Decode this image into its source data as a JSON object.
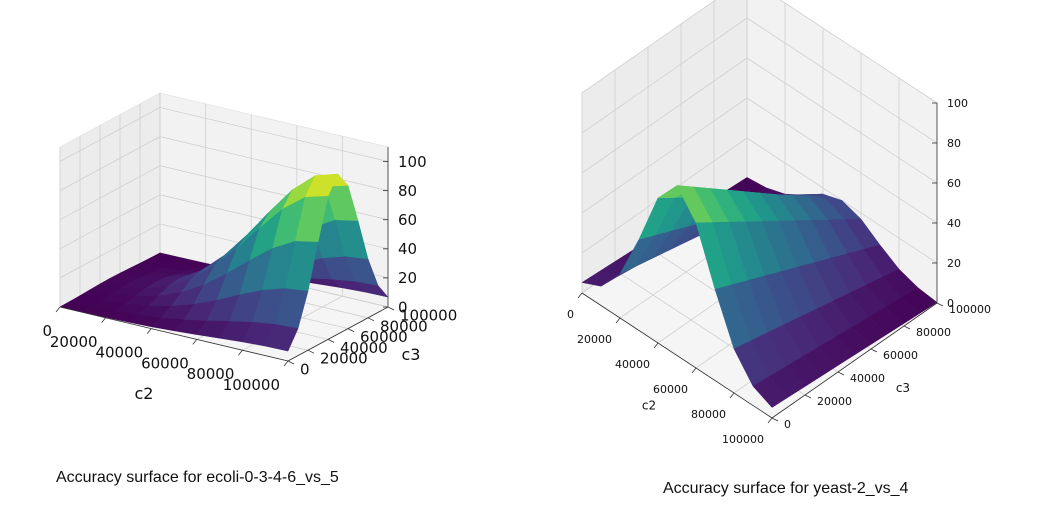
{
  "chart_data": [
    {
      "type": "surface3d",
      "caption": "Accuracy surface for ecoli-0-3-4-6_vs_5",
      "xlabel": "c2",
      "ylabel": "c3",
      "zlabel": "",
      "xlim": [
        0,
        100000
      ],
      "ylim": [
        0,
        100000
      ],
      "zlim": [
        0,
        110
      ],
      "x_ticks": [
        "0",
        "20000",
        "40000",
        "60000",
        "80000",
        "100000"
      ],
      "y_ticks": [
        "0",
        "20000",
        "40000",
        "60000",
        "80000",
        "100000"
      ],
      "z_ticks": [
        "0",
        "20",
        "40",
        "60",
        "80",
        "100"
      ],
      "grid": true,
      "colormap": "viridis",
      "surface_shape": "dome peaking near c2=100000, c3=50000 at about 110",
      "peak": {
        "c2": 100000,
        "c3": 50000,
        "value": 110
      }
    },
    {
      "type": "surface3d",
      "caption": "Accuracy surface for yeast-2_vs_4",
      "xlabel": "c2",
      "ylabel": "c3",
      "zlabel": "",
      "xlim": [
        0,
        100000
      ],
      "ylim": [
        0,
        100000
      ],
      "zlim": [
        0,
        100
      ],
      "x_ticks": [
        "0",
        "20000",
        "40000",
        "60000",
        "80000",
        "100000"
      ],
      "y_ticks": [
        "0",
        "20000",
        "40000",
        "60000",
        "80000",
        "100000"
      ],
      "z_ticks": [
        "0",
        "20",
        "40",
        "60",
        "80",
        "100"
      ],
      "grid": true,
      "colormap": "viridis",
      "surface_shape": "ridge along c2 near 50000, peaking near c3=0 at about 85",
      "peak": {
        "c2": 50000,
        "c3": 0,
        "value": 85
      }
    }
  ]
}
